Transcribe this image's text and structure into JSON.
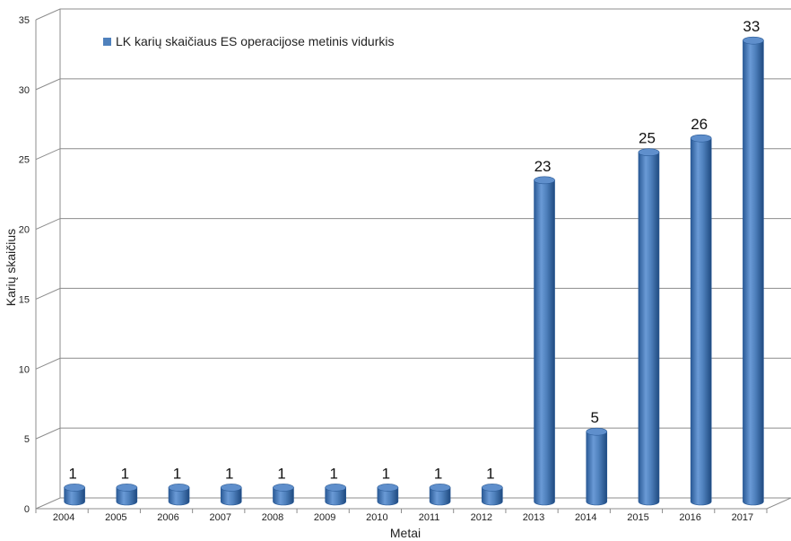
{
  "chart_data": {
    "type": "bar",
    "categories": [
      "2004",
      "2005",
      "2006",
      "2007",
      "2008",
      "2009",
      "2010",
      "2011",
      "2012",
      "2013",
      "2014",
      "2015",
      "2016",
      "2017"
    ],
    "series": [
      {
        "name": "LK karių skaičiaus  ES operacijose metinis vidurkis",
        "values": [
          1,
          1,
          1,
          1,
          1,
          1,
          1,
          1,
          1,
          23,
          5,
          25,
          26,
          33
        ],
        "color": "#4F81BD"
      }
    ],
    "data_labels": [
      "1",
      "1",
      "1",
      "1",
      "1",
      "1",
      "1",
      "1",
      "1",
      "23",
      "5",
      "25",
      "26",
      "33"
    ],
    "xlabel": "Metai",
    "ylabel": "Karių skaičius",
    "ylim": [
      0,
      35
    ],
    "yticks": [
      "0",
      "5",
      "10",
      "15",
      "20",
      "25",
      "30",
      "35"
    ],
    "grid": true,
    "legend_position": "top-left",
    "style": "3d-cylinder"
  }
}
